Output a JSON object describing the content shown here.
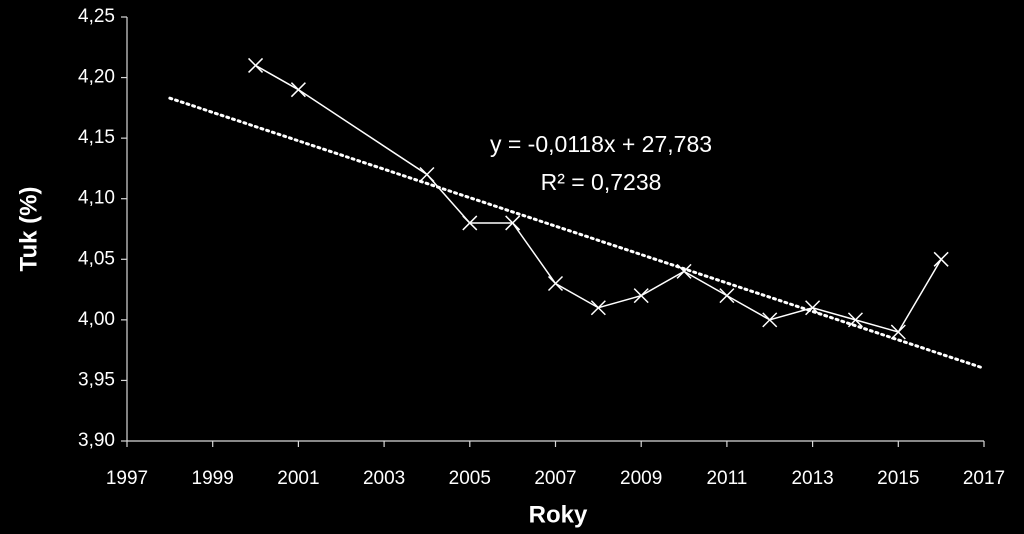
{
  "chart_data": {
    "type": "line",
    "x_label": "Roky",
    "y_label": "Tuk (%)",
    "x": [
      2000,
      2001,
      2004,
      2005,
      2006,
      2007,
      2008,
      2009,
      2010,
      2011,
      2012,
      2013,
      2014,
      2015,
      2016
    ],
    "series": [
      {
        "color": "#ffffff",
        "values": [
          4.21,
          4.19,
          4.12,
          4.08,
          4.08,
          4.03,
          4.01,
          4.02,
          4.04,
          4.02,
          4.0,
          4.01,
          4.0,
          3.99,
          4.05
        ]
      }
    ],
    "trendline": {
      "color": "#ffffff",
      "x": [
        1998,
        2017
      ],
      "values": [
        4.183,
        3.96
      ],
      "equation": "y = -0,0118x + 27,783",
      "r2": "R² = 0,7238"
    },
    "xlim": [
      1997,
      2017
    ],
    "xticks": [
      1997,
      1999,
      2001,
      2003,
      2005,
      2007,
      2009,
      2011,
      2013,
      2015,
      2017
    ],
    "ylim": [
      3.9,
      4.25
    ],
    "yticks": [
      {
        "value": 3.9,
        "label": "3,90"
      },
      {
        "value": 3.95,
        "label": "3,95"
      },
      {
        "value": 4.0,
        "label": "4,00"
      },
      {
        "value": 4.05,
        "label": "4,05"
      },
      {
        "value": 4.1,
        "label": "4,10"
      },
      {
        "value": 4.15,
        "label": "4,15"
      },
      {
        "value": 4.2,
        "label": "4,20"
      },
      {
        "value": 4.25,
        "label": "4,25"
      }
    ],
    "grid": false
  }
}
